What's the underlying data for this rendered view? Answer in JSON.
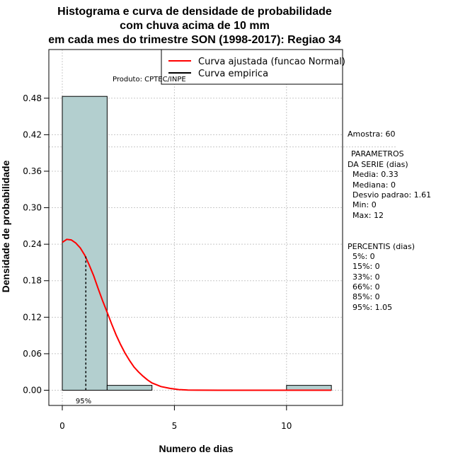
{
  "chart_data": {
    "type": "bar",
    "title_lines": [
      "Histograma e curva de densidade de probabilidade",
      "com chuva acima de 10 mm",
      "em cada mes do trimestre SON (1998-2017): Regiao 34"
    ],
    "xlabel": "Numero de dias",
    "ylabel": "Densidade de probabilidade",
    "xlim": [
      -0.6,
      12.5
    ],
    "ylim": [
      -0.025,
      0.56
    ],
    "x_ticks": [
      "0",
      "5",
      "10"
    ],
    "y_ticks": [
      "0.00",
      "0.06",
      "0.12",
      "0.18",
      "0.24",
      "0.30",
      "0.36",
      "0.42",
      "0.48"
    ],
    "grid": true,
    "bins": [
      {
        "x0": 0,
        "x1": 2,
        "density": 0.483
      },
      {
        "x0": 2,
        "x1": 4,
        "density": 0.008
      },
      {
        "x0": 10,
        "x1": 12,
        "density": 0.008
      }
    ],
    "fitted_curve": {
      "name": "Curva ajustada (funcao Normal)",
      "color": "#ff0000",
      "x": [
        0,
        0.2,
        0.4,
        0.6,
        0.8,
        1.0,
        1.2,
        1.4,
        1.6,
        1.8,
        2.0,
        2.2,
        2.4,
        2.6,
        2.8,
        3.0,
        3.2,
        3.4,
        3.6,
        3.8,
        4.0,
        4.4,
        4.8,
        5.2,
        5.6,
        6.0,
        7.0,
        8.0,
        9.0,
        10.0,
        11.0,
        12.0
      ],
      "y": [
        0.243,
        0.248,
        0.247,
        0.242,
        0.234,
        0.222,
        0.206,
        0.188,
        0.167,
        0.147,
        0.128,
        0.109,
        0.091,
        0.075,
        0.061,
        0.049,
        0.038,
        0.03,
        0.023,
        0.017,
        0.012,
        0.006,
        0.003,
        0.001,
        0.0004,
        0.0001,
        0,
        0,
        0,
        0,
        0,
        0
      ]
    },
    "empirical_curve": {
      "name": "Curva empirica",
      "color": "#000000"
    },
    "percentile_marker": {
      "label": "95%",
      "x": 1.05,
      "y_top": 0.22
    },
    "sample_line": {
      "label": "Amostra: 60",
      "y": 0.4
    }
  },
  "product_label": "Produto: CPTEC/INPE",
  "parameters": {
    "heading_lines": [
      "PARAMETROS",
      "DA SERIE (dias)"
    ],
    "items": [
      "Media: 0.33",
      "Mediana: 0",
      "Desvio padrao: 1.61",
      "Min: 0",
      "Max: 12"
    ]
  },
  "percentiles": {
    "heading": "PERCENTIS (dias)",
    "items": [
      "5%: 0",
      "15%: 0",
      "33%: 0",
      "66%: 0",
      "85%: 0",
      "95%: 1.05"
    ]
  },
  "colors": {
    "bar_fill": "#b3cfcf",
    "grid": "#c8c8c8"
  }
}
